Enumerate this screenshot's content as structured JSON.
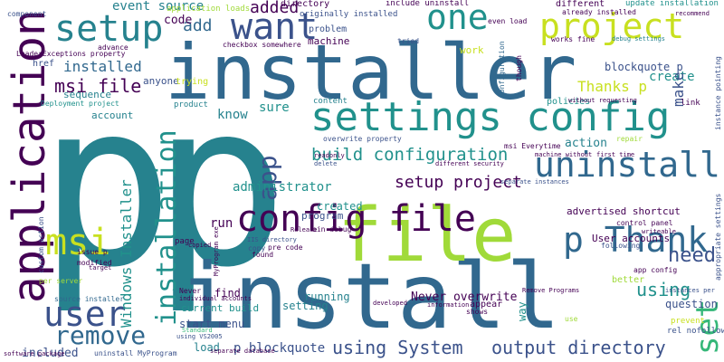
{
  "palette": {
    "dark_purple": "#440154",
    "indigo": "#3b528b",
    "blue": "#31688e",
    "teal": "#26828e",
    "green_teal": "#21918c",
    "green": "#35b779",
    "light_green": "#5ec962",
    "lime": "#a0da39",
    "yellow": "#c8e020"
  },
  "words": [
    {
      "text": "p",
      "color": "teal"
    },
    {
      "text": "installer",
      "color": "blue"
    },
    {
      "text": "install",
      "color": "blue"
    },
    {
      "text": "file",
      "color": "lime"
    },
    {
      "text": "settings config",
      "color": "green_teal"
    },
    {
      "text": "application",
      "color": "dark_purple"
    },
    {
      "text": "config file",
      "color": "dark_purple"
    },
    {
      "text": "setup",
      "color": "teal"
    },
    {
      "text": "project",
      "color": "yellow"
    },
    {
      "text": "want",
      "color": "indigo"
    },
    {
      "text": "one",
      "color": "green_teal"
    },
    {
      "text": "uninstall",
      "color": "blue"
    },
    {
      "text": "user",
      "color": "indigo"
    },
    {
      "text": "msi",
      "color": "yellow"
    },
    {
      "text": "p Thank",
      "color": "blue"
    },
    {
      "text": "remove",
      "color": "blue"
    },
    {
      "text": "installation",
      "color": "green_teal"
    },
    {
      "text": "app",
      "color": "indigo"
    },
    {
      "text": "set",
      "color": "green"
    },
    {
      "text": "Windows Installer",
      "color": "green_teal"
    },
    {
      "text": "build configuration",
      "color": "green_teal"
    },
    {
      "text": "output directory",
      "color": "indigo"
    },
    {
      "text": "using System",
      "color": "indigo"
    },
    {
      "text": "setup project",
      "color": "dark_purple"
    },
    {
      "text": "need",
      "color": "indigo"
    },
    {
      "text": "using",
      "color": "green_teal"
    },
    {
      "text": "msi file",
      "color": "dark_purple"
    },
    {
      "text": "installed",
      "color": "blue"
    },
    {
      "text": "Thanks p",
      "color": "yellow"
    },
    {
      "text": "added",
      "color": "dark_purple"
    },
    {
      "text": "add",
      "color": "blue"
    },
    {
      "text": "code",
      "color": "dark_purple"
    },
    {
      "text": "event source",
      "color": "teal"
    },
    {
      "text": "create",
      "color": "green_teal"
    },
    {
      "text": "blockquote p",
      "color": "indigo"
    },
    {
      "text": "make",
      "color": "indigo"
    },
    {
      "text": "know",
      "color": "teal"
    },
    {
      "text": "sure",
      "color": "green_teal"
    },
    {
      "text": "administrator",
      "color": "green_teal"
    },
    {
      "text": "advertised shortcut",
      "color": "dark_purple"
    },
    {
      "text": "Never overwrite",
      "color": "dark_purple"
    },
    {
      "text": "start menu",
      "color": "indigo"
    },
    {
      "text": "run",
      "color": "dark_purple"
    },
    {
      "text": "find",
      "color": "dark_purple"
    },
    {
      "text": "p blockquote",
      "color": "indigo"
    },
    {
      "text": "load",
      "color": "teal"
    },
    {
      "text": "current build",
      "color": "green_teal"
    },
    {
      "text": "running",
      "color": "teal"
    },
    {
      "text": "setting",
      "color": "teal"
    },
    {
      "text": "created",
      "color": "green_teal"
    },
    {
      "text": "program",
      "color": "indigo"
    },
    {
      "text": "action",
      "color": "teal"
    },
    {
      "text": "User accounts",
      "color": "dark_purple"
    },
    {
      "text": "question",
      "color": "indigo"
    },
    {
      "text": "included",
      "color": "indigo"
    },
    {
      "text": "way",
      "color": "green_teal"
    },
    {
      "text": "anyone",
      "color": "indigo"
    },
    {
      "text": "account",
      "color": "teal"
    },
    {
      "text": "sequence",
      "color": "teal"
    },
    {
      "text": "href",
      "color": "indigo"
    },
    {
      "text": "trying",
      "color": "yellow"
    },
    {
      "text": "machine",
      "color": "dark_purple"
    },
    {
      "text": "directory",
      "color": "dark_purple"
    },
    {
      "text": "problem",
      "color": "indigo"
    },
    {
      "text": "include uninstall",
      "color": "dark_purple"
    },
    {
      "text": "different",
      "color": "dark_purple"
    },
    {
      "text": "update installation",
      "color": "green_teal"
    },
    {
      "text": "originally installed",
      "color": "indigo"
    },
    {
      "text": "application loads",
      "color": "lime"
    },
    {
      "text": "component",
      "color": "indigo"
    },
    {
      "text": "LoaderExceptions property",
      "color": "dark_purple"
    },
    {
      "text": "advance",
      "color": "dark_purple"
    },
    {
      "text": "Deployment project",
      "color": "green_teal"
    },
    {
      "text": "work",
      "color": "yellow"
    },
    {
      "text": "works fine",
      "color": "dark_purple"
    },
    {
      "text": "debug settings",
      "color": "teal"
    },
    {
      "text": "even load",
      "color": "dark_purple"
    },
    {
      "text": "already installed",
      "color": "dark_purple"
    },
    {
      "text": "recommend",
      "color": "dark_purple"
    },
    {
      "text": "instance pointing",
      "color": "indigo"
    },
    {
      "text": "checkbox somewhere",
      "color": "dark_purple"
    },
    {
      "text": "tried",
      "color": "indigo"
    },
    {
      "text": "configuration",
      "color": "blue"
    },
    {
      "text": "though",
      "color": "dark_purple"
    },
    {
      "text": "link",
      "color": "dark_purple"
    },
    {
      "text": "policies",
      "color": "green_teal"
    },
    {
      "text": "content",
      "color": "teal"
    },
    {
      "text": "product",
      "color": "teal"
    },
    {
      "text": "msi Everytime",
      "color": "dark_purple"
    },
    {
      "text": "overwrite property",
      "color": "indigo"
    },
    {
      "text": "repair",
      "color": "lime"
    },
    {
      "text": "control panel",
      "color": "dark_purple"
    },
    {
      "text": "following",
      "color": "indigo"
    },
    {
      "text": "app config",
      "color": "dark_purple"
    },
    {
      "text": "better",
      "color": "lime"
    },
    {
      "text": "appear",
      "color": "dark_purple"
    },
    {
      "text": "shows",
      "color": "dark_purple"
    },
    {
      "text": "prevent",
      "color": "yellow"
    },
    {
      "text": "rel nofollow",
      "color": "indigo"
    },
    {
      "text": "use",
      "color": "lime"
    },
    {
      "text": "instances per",
      "color": "indigo"
    },
    {
      "text": "Remove Programs",
      "color": "dark_purple"
    },
    {
      "text": "bin debug",
      "color": "dark_purple"
    },
    {
      "text": "pre code",
      "color": "dark_purple"
    },
    {
      "text": "copy",
      "color": "indigo"
    },
    {
      "text": "found",
      "color": "dark_purple"
    },
    {
      "text": "page",
      "color": "dark_purple"
    },
    {
      "text": "issue p",
      "color": "dark_purple"
    },
    {
      "text": "modified",
      "color": "dark_purple"
    },
    {
      "text": "per server",
      "color": "lime"
    },
    {
      "text": "source installer",
      "color": "blue"
    },
    {
      "text": "individual accounts",
      "color": "dark_purple"
    },
    {
      "text": "Never",
      "color": "dark_purple"
    },
    {
      "text": "using VS2005",
      "color": "indigo"
    },
    {
      "text": "uninstall MyProgram",
      "color": "indigo"
    },
    {
      "text": "Standard",
      "color": "green"
    },
    {
      "text": "information",
      "color": "dark_purple"
    },
    {
      "text": "developed",
      "color": "dark_purple"
    },
    {
      "text": "software package",
      "color": "dark_purple"
    },
    {
      "text": "target",
      "color": "dark_purple"
    },
    {
      "text": "copied",
      "color": "dark_purple"
    },
    {
      "text": "Release",
      "color": "dark_purple"
    },
    {
      "text": "delete",
      "color": "indigo"
    },
    {
      "text": "readonly",
      "color": "dark_purple"
    },
    {
      "text": "different security",
      "color": "dark_purple"
    },
    {
      "text": "separate instances",
      "color": "indigo"
    },
    {
      "text": "separate database",
      "color": "dark_purple"
    },
    {
      "text": "MyProgram exe",
      "color": "dark_purple"
    },
    {
      "text": "IIS directory",
      "color": "indigo"
    },
    {
      "text": "machine without",
      "color": "dark_purple"
    },
    {
      "text": "first time",
      "color": "dark_purple"
    },
    {
      "text": "writeable",
      "color": "dark_purple"
    },
    {
      "text": "appropriate settings",
      "color": "indigo"
    },
    {
      "text": "custom action",
      "color": "indigo"
    },
    {
      "text": "without requesting",
      "color": "dark_purple"
    }
  ]
}
